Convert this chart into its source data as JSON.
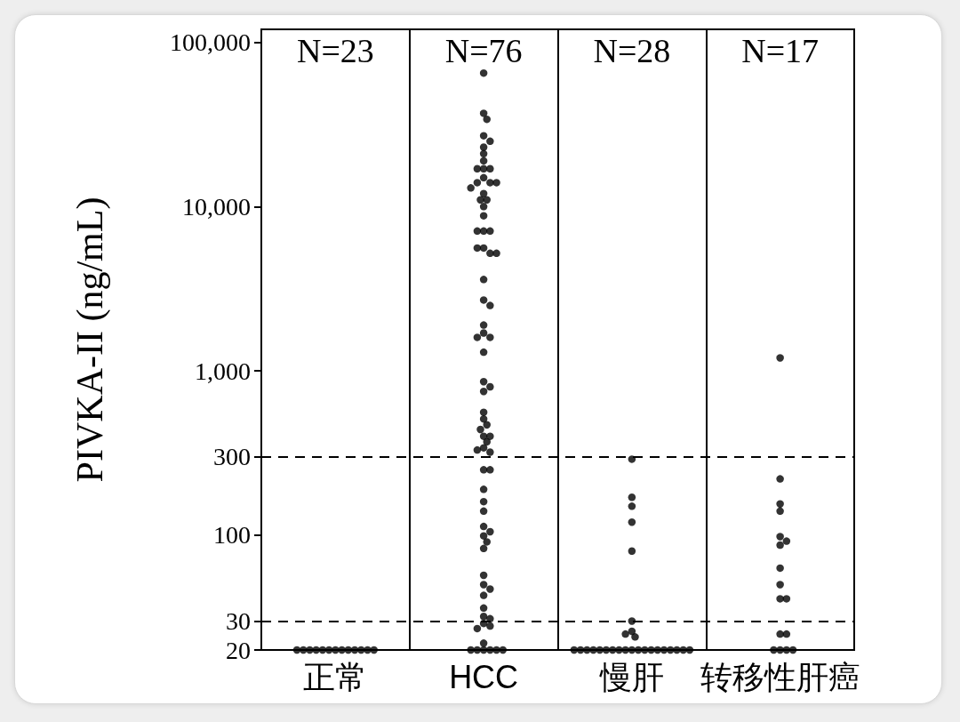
{
  "chart_data": {
    "type": "scatter",
    "ylabel": "PIVKA-II (ng/mL)",
    "log": "y",
    "categories": [
      "正常",
      "HCC",
      "慢肝",
      "转移性肝癌"
    ],
    "ylim": [
      20,
      120000
    ],
    "yticks": [
      20,
      30,
      100,
      300,
      {
        "value": 1000,
        "label": "1,000"
      },
      {
        "value": 10000,
        "label": "10,000"
      },
      {
        "value": 100000,
        "label": "100,000"
      }
    ],
    "grid": "x",
    "marker": "circle",
    "ref_lines": [
      {
        "axis": "y",
        "value": 300,
        "line_style": "dashed"
      },
      {
        "axis": "y",
        "value": 30,
        "line_style": "dashed"
      }
    ],
    "annotations": [
      "N=23",
      "N=76",
      "N=28",
      "N=17"
    ],
    "series": [
      {
        "color": "#000000",
        "x": [
          "正常",
          "正常",
          "正常",
          "正常",
          "正常",
          "正常",
          "正常",
          "正常",
          "正常",
          "正常",
          "正常",
          "正常",
          "正常"
        ],
        "values": [
          20,
          20,
          20,
          20,
          20,
          20,
          20,
          20,
          20,
          20,
          20,
          20,
          20
        ]
      },
      {
        "color": "#000000",
        "x": [
          "HCC",
          "HCC",
          "HCC",
          "HCC",
          "HCC",
          "HCC",
          "HCC",
          "HCC",
          "HCC",
          "HCC",
          "HCC",
          "HCC",
          "HCC",
          "HCC",
          "HCC",
          "HCC",
          "HCC",
          "HCC",
          "HCC",
          "HCC",
          "HCC",
          "HCC",
          "HCC",
          "HCC",
          "HCC",
          "HCC",
          "HCC",
          "HCC",
          "HCC",
          "HCC",
          "HCC",
          "HCC",
          "HCC",
          "HCC",
          "HCC",
          "HCC",
          "HCC",
          "HCC",
          "HCC",
          "HCC",
          "HCC",
          "HCC",
          "HCC",
          "HCC",
          "HCC",
          "HCC",
          "HCC",
          "HCC",
          "HCC",
          "HCC",
          "HCC",
          "HCC",
          "HCC",
          "HCC",
          "HCC",
          "HCC",
          "HCC",
          "HCC",
          "HCC",
          "HCC",
          "HCC",
          "HCC",
          "HCC",
          "HCC",
          "HCC",
          "HCC",
          "HCC",
          "HCC",
          "HCC",
          "HCC",
          "HCC",
          "HCC",
          "HCC",
          "HCC",
          "HCC",
          "HCC"
        ],
        "values": [
          65000,
          37000,
          34000,
          27000,
          25000,
          23000,
          21000,
          19000,
          17000,
          15000,
          14000,
          12000,
          11000,
          10000,
          17000,
          14000,
          17000,
          14000,
          13000,
          11000,
          8800,
          7100,
          7100,
          7100,
          5600,
          5200,
          5600,
          5200,
          3600,
          2700,
          2500,
          1900,
          1700,
          1600,
          1600,
          1300,
          860,
          800,
          750,
          560,
          510,
          470,
          440,
          400,
          370,
          340,
          320,
          400,
          330,
          250,
          250,
          190,
          160,
          140,
          113,
          105,
          99,
          91,
          83,
          57,
          50,
          47,
          43,
          36,
          32,
          31,
          29,
          28,
          27,
          22,
          20,
          20,
          20,
          20,
          20,
          20
        ]
      },
      {
        "color": "#000000",
        "x": [
          "慢肝",
          "慢肝",
          "慢肝",
          "慢肝",
          "慢肝",
          "慢肝",
          "慢肝",
          "慢肝",
          "慢肝",
          "慢肝",
          "慢肝",
          "慢肝",
          "慢肝",
          "慢肝",
          "慢肝",
          "慢肝",
          "慢肝",
          "慢肝",
          "慢肝",
          "慢肝",
          "慢肝",
          "慢肝",
          "慢肝",
          "慢肝",
          "慢肝",
          "慢肝",
          "慢肝",
          "慢肝"
        ],
        "values": [
          290,
          170,
          150,
          120,
          80,
          30,
          26,
          24,
          25,
          20,
          20,
          20,
          20,
          20,
          20,
          20,
          20,
          20,
          20,
          20,
          20,
          20,
          20,
          20,
          20,
          20,
          20,
          20
        ]
      },
      {
        "color": "#000000",
        "x": [
          "转移性肝癌",
          "转移性肝癌",
          "转移性肝癌",
          "转移性肝癌",
          "转移性肝癌",
          "转移性肝癌",
          "转移性肝癌",
          "转移性肝癌",
          "转移性肝癌",
          "转移性肝癌",
          "转移性肝癌",
          "转移性肝癌",
          "转移性肝癌",
          "转移性肝癌",
          "转移性肝癌",
          "转移性肝癌",
          "转移性肝癌"
        ],
        "values": [
          1200,
          220,
          155,
          140,
          98,
          92,
          87,
          63,
          50,
          41,
          41,
          25,
          25,
          20,
          20,
          20,
          20
        ]
      }
    ]
  }
}
